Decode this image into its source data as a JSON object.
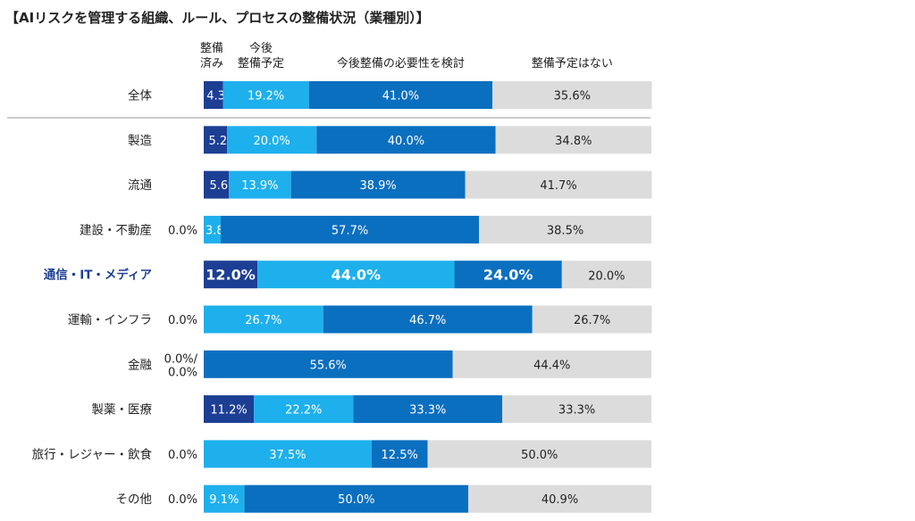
{
  "chart_data": {
    "type": "bar",
    "stacked": true,
    "orientation": "horizontal",
    "percent": true,
    "title": "【AIリスクを管理する組織、ルール、プロセスの整備状況（業種別）】",
    "series": [
      {
        "name": "整備済み",
        "header_lines": [
          "整備",
          "済み"
        ],
        "color": "#1c3f94",
        "label_color": "#ffffff",
        "values": [
          4.3,
          5.2,
          5.6,
          0.0,
          12.0,
          0.0,
          0.0,
          11.2,
          0.0,
          0.0
        ]
      },
      {
        "name": "今後整備予定",
        "header_lines": [
          "今後",
          "整備予定"
        ],
        "color": "#1eb0ec",
        "label_color": "#ffffff",
        "values": [
          19.2,
          20.0,
          13.9,
          3.8,
          44.0,
          26.7,
          0.0,
          22.2,
          37.5,
          9.1
        ]
      },
      {
        "name": "今後整備の必要性を検討",
        "header_lines": [
          "今後整備の必要性を検討"
        ],
        "color": "#0b6fbf",
        "label_color": "#ffffff",
        "values": [
          41.0,
          40.0,
          38.9,
          57.7,
          24.0,
          46.7,
          55.6,
          33.3,
          12.5,
          50.0
        ]
      },
      {
        "name": "整備予定はない",
        "header_lines": [
          "整備予定はない"
        ],
        "color": "#dcdcdc",
        "label_color": "#222222",
        "values": [
          35.6,
          34.8,
          41.7,
          38.5,
          20.0,
          26.7,
          44.4,
          33.3,
          50.0,
          40.9
        ]
      }
    ],
    "categories": [
      "全体",
      "製造",
      "流通",
      "建設・不動産",
      "通信・IT・メディア",
      "運輸・インフラ",
      "金融",
      "製薬・医療",
      "旅行・レジャー・飲食",
      "その他"
    ],
    "highlight_category": "通信・IT・メディア",
    "zero_notes": [
      "",
      "",
      "",
      "0.0%",
      "",
      "0.0%",
      "0.0%/\n0.0%",
      "",
      "0.0%",
      "0.0%"
    ],
    "labels": [
      [
        "4.3%",
        "19.2%",
        "41.0%",
        "35.6%"
      ],
      [
        "5.2%",
        "20.0%",
        "40.0%",
        "34.8%"
      ],
      [
        "5.6%",
        "13.9%",
        "38.9%",
        "41.7%"
      ],
      [
        "",
        "3.8%",
        "57.7%",
        "38.5%"
      ],
      [
        "12.0%",
        "44.0%",
        "24.0%",
        "20.0%"
      ],
      [
        "",
        "26.7%",
        "46.7%",
        "26.7%"
      ],
      [
        "",
        "",
        "55.6%",
        "44.4%"
      ],
      [
        "11.2%",
        "22.2%",
        "33.3%",
        "33.3%"
      ],
      [
        "",
        "37.5%",
        "12.5%",
        "50.0%"
      ],
      [
        "",
        "9.1%",
        "50.0%",
        "40.9%"
      ]
    ],
    "xlim": [
      0,
      100
    ],
    "divider_after_first": true
  }
}
